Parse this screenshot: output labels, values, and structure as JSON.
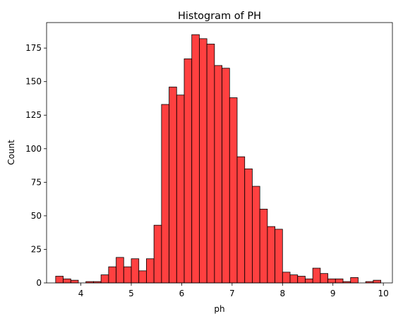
{
  "chart_data": {
    "type": "bar",
    "title": "Histogram of PH",
    "xlabel": "ph",
    "ylabel": "Count",
    "xlim": [
      3.32,
      10.18
    ],
    "ylim": [
      0,
      194
    ],
    "xticks": [
      4,
      5,
      6,
      7,
      8,
      9,
      10
    ],
    "yticks": [
      0,
      25,
      50,
      75,
      100,
      125,
      150,
      175
    ],
    "grid": false,
    "bar_color": "#ff0000",
    "bar_alpha": 0.75,
    "edge_color": "#000000",
    "bins": {
      "start": 3.5,
      "width": 0.15,
      "counts": [
        5,
        3,
        2,
        0,
        1,
        1,
        6,
        12,
        19,
        12,
        18,
        9,
        18,
        43,
        133,
        146,
        140,
        167,
        185,
        182,
        178,
        162,
        160,
        138,
        94,
        85,
        72,
        55,
        42,
        40,
        8,
        6,
        5,
        3,
        11,
        7,
        3,
        3,
        1,
        4,
        0,
        1,
        2
      ]
    }
  }
}
